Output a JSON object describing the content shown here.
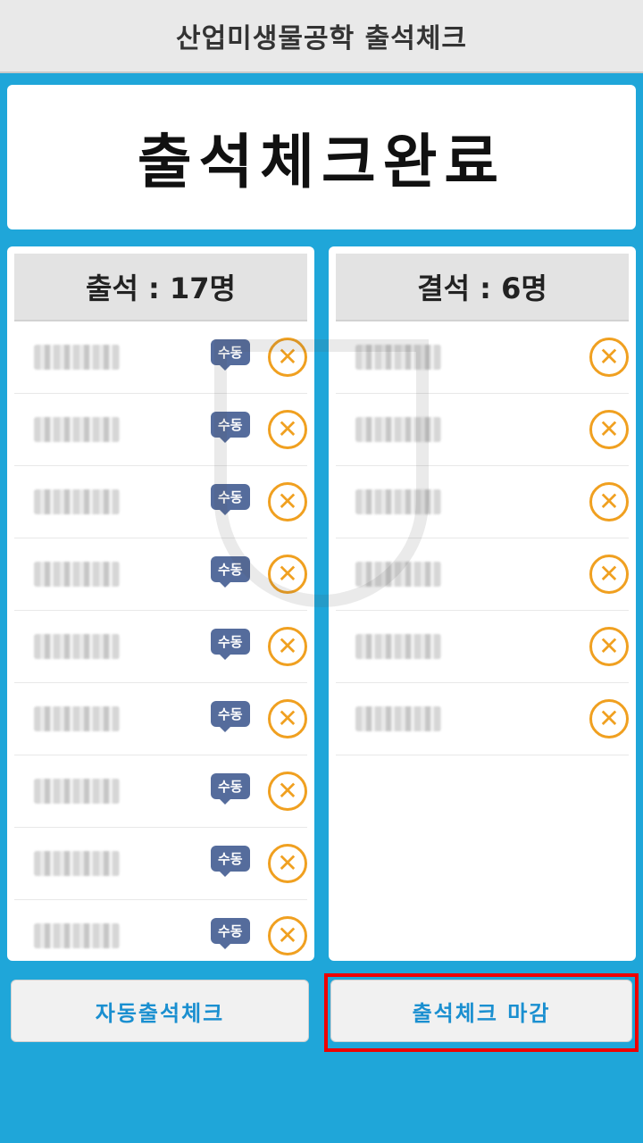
{
  "app": {
    "title": "산업미생물공학 출석체크"
  },
  "banner": {
    "text": "출석체크완료"
  },
  "present": {
    "header": "출석 : 17명",
    "badge_label": "수동",
    "rows": 9
  },
  "absent": {
    "header": "결석 : 6명",
    "rows": 6
  },
  "buttons": {
    "auto": "자동출석체크",
    "close": "출석체크 마감"
  },
  "colors": {
    "background": "#1fa6d9",
    "accent_orange": "#f0a020",
    "badge_blue": "#556c9c",
    "highlight_red": "#ee0000"
  },
  "icons": {
    "remove": "x-circle-icon"
  }
}
